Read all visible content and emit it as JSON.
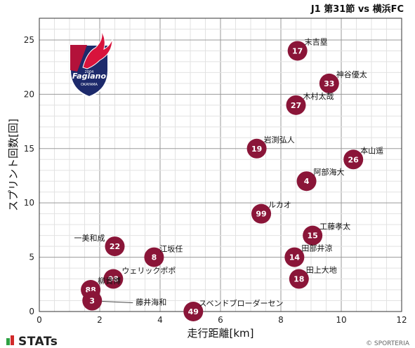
{
  "header": {
    "title": "J1 第31節 vs 横浜FC"
  },
  "footer": {
    "brand": "STATs",
    "copyright": "© SPORTERIA"
  },
  "team_logo": {
    "text": "Fagiano",
    "sub": "OKAYAMA",
    "year": "2004"
  },
  "chart_data": {
    "type": "scatter",
    "title": "J1 第31節 vs 横浜FC",
    "xlabel": "走行距離[km]",
    "ylabel": "スプリント回数[回]",
    "xlim": [
      0,
      12
    ],
    "ylim": [
      0,
      27
    ],
    "xticks": [
      0,
      2,
      4,
      6,
      8,
      10,
      12
    ],
    "yticks": [
      0,
      5,
      10,
      15,
      20,
      25
    ],
    "grid": true,
    "marker_color": "#8a1538",
    "points": [
      {
        "number": "17",
        "name": "末吉塁",
        "x": 8.55,
        "y": 24
      },
      {
        "number": "33",
        "name": "神谷優太",
        "x": 9.6,
        "y": 21
      },
      {
        "number": "27",
        "name": "木村太哉",
        "x": 8.5,
        "y": 19
      },
      {
        "number": "19",
        "name": "岩渕弘人",
        "x": 7.2,
        "y": 15
      },
      {
        "number": "26",
        "name": "本山遥",
        "x": 10.4,
        "y": 14
      },
      {
        "number": "4",
        "name": "阿部海大",
        "x": 8.85,
        "y": 12
      },
      {
        "number": "99",
        "name": "ルカオ",
        "x": 7.35,
        "y": 9
      },
      {
        "number": "15",
        "name": "工藤孝太",
        "x": 9.05,
        "y": 7
      },
      {
        "number": "14",
        "name": "田部井涼",
        "x": 8.45,
        "y": 5
      },
      {
        "number": "18",
        "name": "田上大地",
        "x": 8.6,
        "y": 3
      },
      {
        "number": "22",
        "name": "一美和成",
        "x": 2.5,
        "y": 6
      },
      {
        "number": "8",
        "name": "江坂任",
        "x": 3.8,
        "y": 5
      },
      {
        "number": "98",
        "name": "ウェリックポポ",
        "x": 2.45,
        "y": 3
      },
      {
        "number": "88",
        "name": "柳貴博",
        "x": 1.7,
        "y": 2
      },
      {
        "number": "3",
        "name": "藤井海和",
        "x": 1.75,
        "y": 1
      },
      {
        "number": "49",
        "name": "スベンドブローダーセン",
        "x": 5.1,
        "y": 0
      }
    ]
  }
}
